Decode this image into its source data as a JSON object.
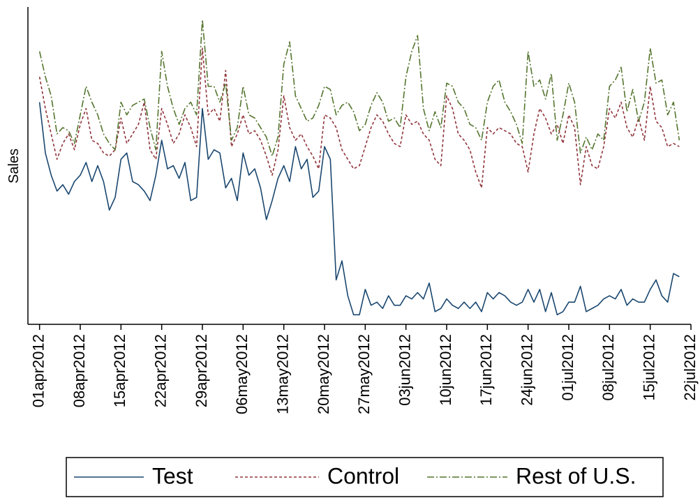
{
  "chart_data": {
    "type": "line",
    "y_label": "Sales",
    "x": [
      "2012-04-01",
      "2012-04-02",
      "2012-04-03",
      "2012-04-04",
      "2012-04-05",
      "2012-04-06",
      "2012-04-07",
      "2012-04-08",
      "2012-04-09",
      "2012-04-10",
      "2012-04-11",
      "2012-04-12",
      "2012-04-13",
      "2012-04-14",
      "2012-04-15",
      "2012-04-16",
      "2012-04-17",
      "2012-04-18",
      "2012-04-19",
      "2012-04-20",
      "2012-04-21",
      "2012-04-22",
      "2012-04-23",
      "2012-04-24",
      "2012-04-25",
      "2012-04-26",
      "2012-04-27",
      "2012-04-28",
      "2012-04-29",
      "2012-04-30",
      "2012-05-01",
      "2012-05-02",
      "2012-05-03",
      "2012-05-04",
      "2012-05-05",
      "2012-05-06",
      "2012-05-07",
      "2012-05-08",
      "2012-05-09",
      "2012-05-10",
      "2012-05-11",
      "2012-05-12",
      "2012-05-13",
      "2012-05-14",
      "2012-05-15",
      "2012-05-16",
      "2012-05-17",
      "2012-05-18",
      "2012-05-19",
      "2012-05-20",
      "2012-05-21",
      "2012-05-22",
      "2012-05-23",
      "2012-05-24",
      "2012-05-25",
      "2012-05-26",
      "2012-05-27",
      "2012-05-28",
      "2012-05-29",
      "2012-05-30",
      "2012-05-31",
      "2012-06-01",
      "2012-06-02",
      "2012-06-03",
      "2012-06-04",
      "2012-06-05",
      "2012-06-06",
      "2012-06-07",
      "2012-06-08",
      "2012-06-09",
      "2012-06-10",
      "2012-06-11",
      "2012-06-12",
      "2012-06-13",
      "2012-06-14",
      "2012-06-15",
      "2012-06-16",
      "2012-06-17",
      "2012-06-18",
      "2012-06-19",
      "2012-06-20",
      "2012-06-21",
      "2012-06-22",
      "2012-06-23",
      "2012-06-24",
      "2012-06-25",
      "2012-06-26",
      "2012-06-27",
      "2012-06-28",
      "2012-06-29",
      "2012-06-30",
      "2012-07-01",
      "2012-07-02",
      "2012-07-03",
      "2012-07-04",
      "2012-07-05",
      "2012-07-06",
      "2012-07-07",
      "2012-07-08",
      "2012-07-09",
      "2012-07-10",
      "2012-07-11",
      "2012-07-12",
      "2012-07-13",
      "2012-07-14",
      "2012-07-15",
      "2012-07-16",
      "2012-07-17",
      "2012-07-18",
      "2012-07-19",
      "2012-07-20"
    ],
    "series": [
      {
        "name": "Test",
        "color": "#1a476f",
        "dash": "none",
        "values": [
          70,
          54,
          47,
          42,
          44,
          41,
          45,
          47,
          51,
          45,
          50,
          45,
          36,
          40,
          52,
          54,
          45,
          44,
          42,
          39,
          47,
          58,
          49,
          50,
          46,
          51,
          39,
          40,
          68,
          52,
          55,
          54,
          43,
          46,
          39,
          54,
          47,
          49,
          43,
          33,
          39,
          46,
          50,
          45,
          56,
          49,
          52,
          40,
          42,
          56,
          52,
          14,
          20,
          9,
          3,
          3,
          11,
          6,
          7,
          5,
          9,
          6,
          6,
          9,
          8,
          10,
          8,
          13,
          4,
          5,
          8,
          6,
          5,
          7,
          5,
          7,
          4,
          10,
          8,
          10,
          9,
          7,
          6,
          7,
          11,
          7,
          11,
          4,
          10,
          3,
          4,
          7,
          7,
          12,
          4,
          5,
          6,
          8,
          9,
          8,
          11,
          6,
          8,
          7,
          7,
          11,
          14,
          9,
          7,
          16,
          15
        ]
      },
      {
        "name": "Control",
        "color": "#90353b",
        "dash": "4 3",
        "values": [
          78,
          68,
          60,
          52,
          57,
          60,
          55,
          63,
          68,
          58,
          57,
          54,
          53,
          55,
          65,
          57,
          60,
          63,
          70,
          55,
          52,
          68,
          63,
          57,
          60,
          66,
          62,
          56,
          87,
          66,
          68,
          64,
          80,
          56,
          60,
          66,
          60,
          61,
          58,
          53,
          47,
          55,
          72,
          62,
          58,
          60,
          56,
          53,
          49,
          66,
          65,
          62,
          55,
          52,
          49,
          50,
          56,
          62,
          66,
          64,
          60,
          57,
          56,
          66,
          63,
          64,
          60,
          58,
          52,
          50,
          72,
          68,
          60,
          58,
          55,
          48,
          43,
          62,
          60,
          62,
          61,
          60,
          57,
          56,
          48,
          60,
          68,
          65,
          60,
          63,
          57,
          66,
          62,
          44,
          56,
          50,
          49,
          56,
          68,
          65,
          70,
          62,
          59,
          65,
          58,
          75,
          64,
          62,
          56,
          57,
          56
        ]
      },
      {
        "name": "Rest of U.S.",
        "color": "#55752f",
        "dash": "10 3 2 3",
        "values": [
          86,
          78,
          72,
          60,
          62,
          61,
          57,
          66,
          75,
          70,
          66,
          60,
          57,
          55,
          70,
          66,
          69,
          70,
          71,
          62,
          55,
          86,
          75,
          68,
          63,
          68,
          70,
          66,
          96,
          75,
          75,
          70,
          76,
          58,
          62,
          75,
          66,
          65,
          62,
          59,
          53,
          59,
          82,
          89,
          72,
          68,
          64,
          65,
          69,
          75,
          74,
          66,
          69,
          70,
          67,
          61,
          63,
          69,
          73,
          70,
          64,
          65,
          62,
          78,
          86,
          91,
          68,
          61,
          67,
          62,
          76,
          75,
          70,
          68,
          63,
          62,
          58,
          70,
          75,
          77,
          70,
          67,
          63,
          57,
          86,
          75,
          77,
          71,
          79,
          58,
          66,
          76,
          70,
          54,
          59,
          55,
          60,
          58,
          75,
          77,
          81,
          67,
          74,
          64,
          70,
          87,
          76,
          77,
          66,
          70,
          58
        ]
      }
    ],
    "xlim": [
      "2012-03-30",
      "2012-07-22"
    ],
    "xticks": [
      {
        "value": "2012-04-01",
        "label": "01apr2012"
      },
      {
        "value": "2012-04-08",
        "label": "08apr2012"
      },
      {
        "value": "2012-04-15",
        "label": "15apr2012"
      },
      {
        "value": "2012-04-22",
        "label": "22apr2012"
      },
      {
        "value": "2012-04-29",
        "label": "29apr2012"
      },
      {
        "value": "2012-05-06",
        "label": "06may2012"
      },
      {
        "value": "2012-05-13",
        "label": "13may2012"
      },
      {
        "value": "2012-05-20",
        "label": "20may2012"
      },
      {
        "value": "2012-05-27",
        "label": "27may2012"
      },
      {
        "value": "2012-06-03",
        "label": "03jun2012"
      },
      {
        "value": "2012-06-10",
        "label": "10jun2012"
      },
      {
        "value": "2012-06-17",
        "label": "17jun2012"
      },
      {
        "value": "2012-06-24",
        "label": "24jun2012"
      },
      {
        "value": "2012-07-01",
        "label": "01jul2012"
      },
      {
        "value": "2012-07-08",
        "label": "08jul2012"
      },
      {
        "value": "2012-07-15",
        "label": "15jul2012"
      },
      {
        "value": "2012-07-22",
        "label": "22jul2012"
      }
    ],
    "ylim": [
      0,
      100
    ],
    "legend": "bottom"
  }
}
